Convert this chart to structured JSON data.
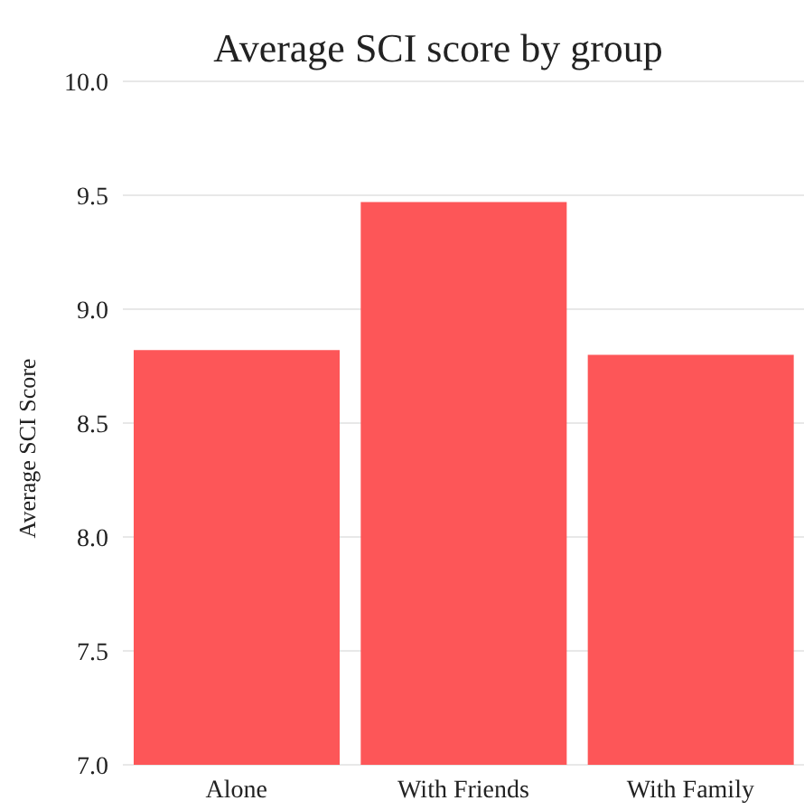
{
  "chart_data": {
    "type": "bar",
    "title": "Average SCI score by group",
    "ylabel": "Average SCI Score",
    "categories": [
      "Alone",
      "With Friends",
      "With Family"
    ],
    "values": [
      8.82,
      9.47,
      8.8
    ],
    "color": "#fd5658",
    "ylim": [
      7,
      10
    ],
    "yticks": [
      {
        "value": 7,
        "label": "7.0"
      },
      {
        "value": 7.5,
        "label": "7.5"
      },
      {
        "value": 8,
        "label": "8.0"
      },
      {
        "value": 8.5,
        "label": "8.5"
      },
      {
        "value": 9,
        "label": "9.0"
      },
      {
        "value": 9.5,
        "label": "9.5"
      },
      {
        "value": 10,
        "label": "10.0"
      }
    ],
    "grid": "y"
  }
}
